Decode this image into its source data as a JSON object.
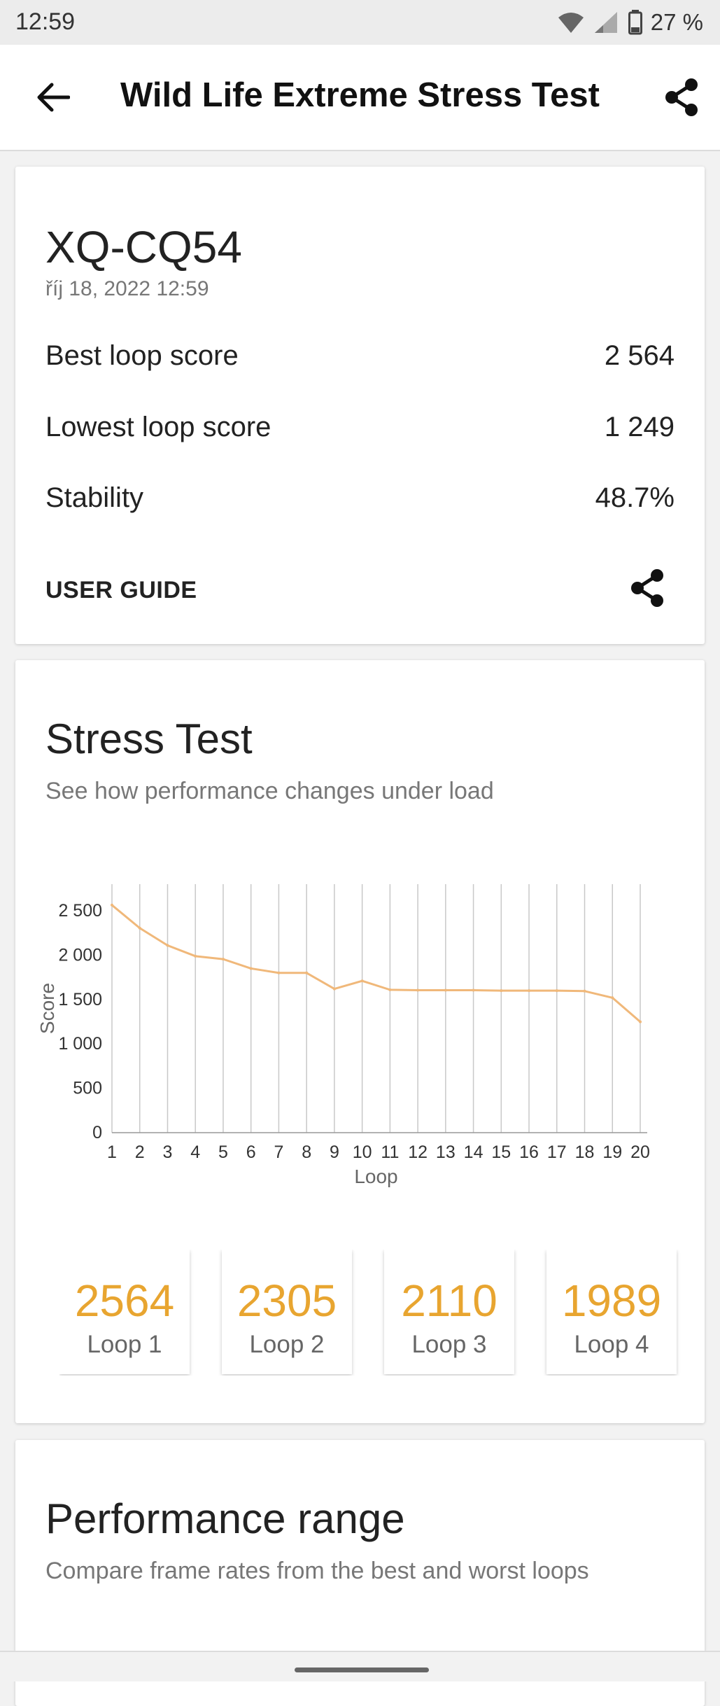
{
  "status": {
    "time": "12:59",
    "battery": "27 %"
  },
  "header": {
    "title": "Wild Life Extreme Stress Test",
    "back_icon": "arrow-left-icon",
    "share_icon": "share-icon"
  },
  "device": {
    "name": "XQ-CQ54",
    "date": "říj 18, 2022 12:59",
    "stats": [
      {
        "label": "Best loop score",
        "value": "2 564"
      },
      {
        "label": "Lowest loop score",
        "value": "1 249"
      },
      {
        "label": "Stability",
        "value": "48.7%"
      }
    ],
    "user_guide": "USER GUIDE"
  },
  "stress": {
    "title": "Stress Test",
    "subtitle": "See how performance changes under load",
    "loops": [
      {
        "score": "2564",
        "label": "Loop 1"
      },
      {
        "score": "2305",
        "label": "Loop 2"
      },
      {
        "score": "2110",
        "label": "Loop 3"
      },
      {
        "score": "1989",
        "label": "Loop 4"
      }
    ]
  },
  "range": {
    "title": "Performance range",
    "subtitle": "Compare frame rates from the best and worst loops"
  },
  "colors": {
    "accent": "#e8a530",
    "line": "#f0b87a"
  },
  "chart_data": {
    "type": "line",
    "x": [
      1,
      2,
      3,
      4,
      5,
      6,
      7,
      8,
      9,
      10,
      11,
      12,
      13,
      14,
      15,
      16,
      17,
      18,
      19,
      20
    ],
    "series": [
      {
        "values": [
          2564,
          2305,
          2110,
          1989,
          1955,
          1850,
          1800,
          1800,
          1620,
          1710,
          1610,
          1605,
          1605,
          1605,
          1600,
          1600,
          1600,
          1595,
          1520,
          1249
        ]
      }
    ],
    "xlabel": "Loop",
    "ylabel": "Score",
    "yticks": [
      "0",
      "500",
      "1 000",
      "1 500",
      "2 000",
      "2 500"
    ],
    "ylim": [
      0,
      2800
    ],
    "grid": "vertical"
  }
}
